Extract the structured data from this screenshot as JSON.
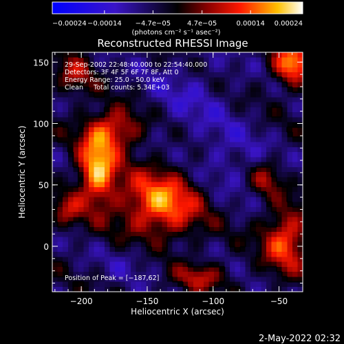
{
  "chart_data": {
    "type": "heatmap",
    "title": "Reconstructed RHESSI Image",
    "xlabel": "Heliocentric X (arcsec)",
    "ylabel": "Heliocentric Y (arcsec)",
    "xlim": [
      -222,
      -32
    ],
    "ylim": [
      -37,
      158
    ],
    "x_ticks": [
      -200,
      -150,
      -100,
      -50
    ],
    "x_tick_labels": [
      "−200",
      "−150",
      "−100",
      "−50"
    ],
    "y_ticks": [
      0,
      50,
      100,
      150
    ],
    "y_tick_labels": [
      "0",
      "50",
      "100",
      "150"
    ],
    "colorbar": {
      "min": -0.00024,
      "max": 0.00024,
      "colormap": "red-temperature with blue negatives",
      "tick_values": [
        -0.00024,
        -0.00014,
        -4.7e-05,
        4.7e-05,
        0.00014,
        0.00024
      ],
      "tick_labels": [
        "−0.00024",
        "−0.00014",
        "−4.7e−05",
        "4.7e−05",
        "0.00014",
        "0.00024"
      ],
      "unit_label": "(photons cm⁻² s⁻¹ asec⁻²)"
    },
    "info_lines": [
      "29-Sep-2002 22:48:40.000 to 22:54:40.000",
      "Detectors: 3F 4F 5F 6F 7F 8F, Att 0",
      "Energy Range: 25.0 - 50.0 keV",
      "Clean     Total counts: 5.34E+03"
    ],
    "peak_label": "Position of Peak = [−187,62]",
    "peak_position": [
      -187,
      62
    ],
    "grid": false,
    "contour_level": 0,
    "sources": [
      {
        "x": -140,
        "y": 35,
        "sx": 22,
        "sy": 20,
        "amp": 0.00021
      },
      {
        "x": -188,
        "y": 62,
        "sx": 10,
        "sy": 20,
        "amp": 0.00024
      },
      {
        "x": -175,
        "y": 95,
        "sx": 15,
        "sy": 12,
        "amp": 0.00016
      },
      {
        "x": -40,
        "y": 148,
        "sx": 10,
        "sy": 12,
        "amp": 0.00021
      },
      {
        "x": -45,
        "y": 5,
        "sx": 12,
        "sy": 18,
        "amp": 0.00018
      },
      {
        "x": -210,
        "y": 30,
        "sx": 8,
        "sy": 10,
        "amp": 0.0001
      },
      {
        "x": -205,
        "y": 140,
        "sx": 10,
        "sy": 12,
        "amp": 0.0001
      },
      {
        "x": -110,
        "y": -25,
        "sx": 14,
        "sy": 8,
        "amp": 0.00011
      },
      {
        "x": -60,
        "y": 55,
        "sx": 8,
        "sy": 10,
        "amp": 0.0001
      },
      {
        "x": -120,
        "y": 120,
        "sx": 25,
        "sy": 25,
        "amp": -5e-05
      },
      {
        "x": -90,
        "y": 70,
        "sx": 20,
        "sy": 20,
        "amp": -6e-05
      },
      {
        "x": -160,
        "y": -10,
        "sx": 18,
        "sy": 12,
        "amp": -4e-05
      }
    ]
  },
  "timestamp": "2-May-2022 02:32"
}
